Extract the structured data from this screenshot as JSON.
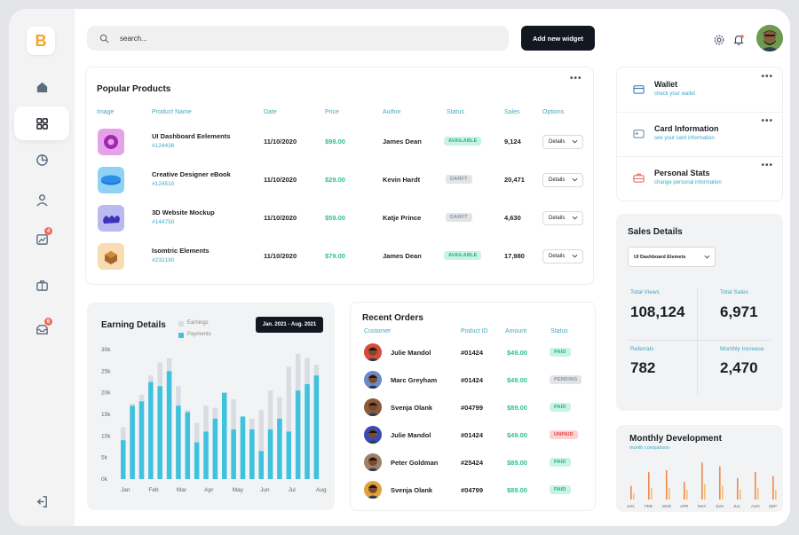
{
  "app": {
    "logo_letter": "B"
  },
  "sidebar": {
    "items": [
      {
        "name": "home",
        "icon": "home-icon",
        "active": false
      },
      {
        "name": "dashboard",
        "icon": "grid-icon",
        "active": true
      },
      {
        "name": "reports",
        "icon": "pie-chart-icon",
        "active": false
      },
      {
        "name": "users",
        "icon": "user-icon",
        "active": false
      },
      {
        "name": "analytics",
        "icon": "chart-image-icon",
        "active": false,
        "badge": "4"
      },
      {
        "name": "briefcase",
        "icon": "briefcase-icon",
        "active": false
      },
      {
        "name": "messages",
        "icon": "inbox-icon",
        "active": false,
        "badge": "6"
      },
      {
        "name": "logout",
        "icon": "logout-icon",
        "active": false
      }
    ]
  },
  "header": {
    "search_placeholder": "search...",
    "add_button": "Add new widget"
  },
  "popular_products": {
    "title": "Popular Products",
    "columns": [
      "Image",
      "Product Name",
      "Date",
      "Price",
      "Author",
      "Status",
      "Sales",
      "Options"
    ],
    "rows": [
      {
        "name": "UI Dashboard Eelements",
        "id": "#124436",
        "date": "11/10/2020",
        "price": "$98.00",
        "author": "James Dean",
        "status": "AVAILABLE",
        "sales": "9,124",
        "option": "Details",
        "thumb_color": "#e6a2e9"
      },
      {
        "name": "Creative Designer eBook",
        "id": "#124510",
        "date": "11/10/2020",
        "price": "$29.00",
        "author": "Kevin Hardt",
        "status": "DARFT",
        "sales": "20,471",
        "option": "Details",
        "thumb_color": "#8fd2f3"
      },
      {
        "name": "3D Website Mockup",
        "id": "#144750",
        "date": "11/10/2020",
        "price": "$59.00",
        "author": "Katje Prince",
        "status": "DARFT",
        "sales": "4,630",
        "option": "Details",
        "thumb_color": "#bcb9f1"
      },
      {
        "name": "Isomtric Elements",
        "id": "#232190",
        "date": "11/10/2020",
        "price": "$79.00",
        "author": "James Dean",
        "status": "AVAILABLE",
        "sales": "17,980",
        "option": "Details",
        "thumb_color": "#f8dcb2"
      }
    ]
  },
  "wallet_panel": {
    "items": [
      {
        "title": "Wallet",
        "subtitle": "check your wallet",
        "icon": "wallet-icon"
      },
      {
        "title": "Card Information",
        "subtitle": "see your card information",
        "icon": "card-icon"
      },
      {
        "title": "Personal Stats",
        "subtitle": "change personal information",
        "icon": "briefcase-icon"
      }
    ]
  },
  "earning": {
    "title": "Earning Details",
    "legend": [
      {
        "label": "Earnings",
        "color": "#d7dde3"
      },
      {
        "label": "Payments",
        "color": "#3ec2de"
      }
    ],
    "range_label": "Jan. 2021 - Aug. 2021"
  },
  "chart_data": {
    "type": "bar",
    "y_ticks": [
      "30k",
      "25k",
      "20k",
      "15k",
      "10k",
      "5k",
      "0k"
    ],
    "ylim": [
      0,
      30000
    ],
    "x_labels": [
      "Jan",
      "Feb",
      "Mar",
      "Apr",
      "May",
      "Jun",
      "Jul",
      "Aug"
    ],
    "series": [
      {
        "name": "Earnings",
        "color": "#d7dde3",
        "values": [
          12000,
          17500,
          19500,
          24000,
          27000,
          28000,
          21500,
          16000,
          13000,
          17000,
          16500,
          20000,
          18500,
          13500,
          14000,
          16000,
          20500,
          19000,
          26000,
          29000,
          28000,
          26500
        ]
      },
      {
        "name": "Payments",
        "color": "#3ec2de",
        "values": [
          9000,
          17000,
          18000,
          22500,
          21500,
          25000,
          17000,
          15500,
          8500,
          11000,
          14000,
          20000,
          11500,
          14500,
          11500,
          6500,
          11500,
          14000,
          11000,
          20500,
          22000,
          24000
        ]
      }
    ]
  },
  "recent_orders": {
    "title": "Recent Orders",
    "columns": [
      "Customer",
      "Poduct ID",
      "Amount",
      "Status"
    ],
    "rows": [
      {
        "name": "Julie Mandol",
        "id": "#01424",
        "amount": "$49.00",
        "status": "PAID",
        "avatar_color": "#d94a3a"
      },
      {
        "name": "Marc Greyham",
        "id": "#01424",
        "amount": "$49.00",
        "status": "PENDING",
        "avatar_color": "#6b8ac9"
      },
      {
        "name": "Svenja Olank",
        "id": "#04799",
        "amount": "$89.00",
        "status": "PAID",
        "avatar_color": "#8a5a3a"
      },
      {
        "name": "Julie Mandol",
        "id": "#01424",
        "amount": "$49.00",
        "status": "UNPAID",
        "avatar_color": "#3a4ab8"
      },
      {
        "name": "Peter Goldman",
        "id": "#25424",
        "amount": "$89.00",
        "status": "PAID",
        "avatar_color": "#a0806a"
      },
      {
        "name": "Svenja Olank",
        "id": "#04799",
        "amount": "$89.00",
        "status": "PAID",
        "avatar_color": "#e0a23a"
      }
    ]
  },
  "sales_details": {
    "title": "Sales Details",
    "select_value": "UI Dashboard Elemets",
    "stats": [
      {
        "label": "Total Views",
        "value": "108,124"
      },
      {
        "label": "Total Sales",
        "value": "6,971"
      },
      {
        "label": "Referrals",
        "value": "782"
      },
      {
        "label": "Monthly Increase",
        "value": "2,470"
      }
    ]
  },
  "monthly_development": {
    "title": "Monthly Development",
    "subtitle": "month comparison",
    "x_labels": [
      "JAN",
      "FEB",
      "MAR",
      "APR",
      "MAY",
      "JUN",
      "JUL",
      "AUG",
      "SEP"
    ],
    "series_a": [
      7,
      14,
      15,
      9,
      19,
      17,
      11,
      14,
      12
    ],
    "series_b": [
      3,
      6,
      6,
      5,
      8,
      7,
      5,
      6,
      5
    ],
    "color_a": "#f0884a",
    "color_b": "#f4c06a"
  }
}
